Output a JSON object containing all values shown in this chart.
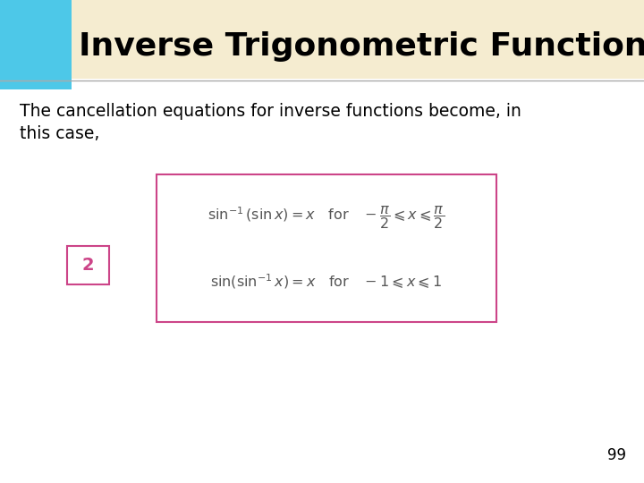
{
  "title": "Inverse Trigonometric Functions",
  "title_bg": "#f5ecd0",
  "title_accent_color": "#4dc8e8",
  "title_fontsize": 26,
  "body_line1": "The cancellation equations for inverse functions become, in",
  "body_line2": "this case,",
  "body_fontsize": 13.5,
  "eq_box_color": "#cc4488",
  "eq_bg_color": "#ffffff",
  "label_box_color": "#cc4488",
  "label_text": "2",
  "page_num": "99",
  "background_color": "#ffffff",
  "sep_line_color": "#aaaaaa",
  "eq_text_color": "#555555"
}
